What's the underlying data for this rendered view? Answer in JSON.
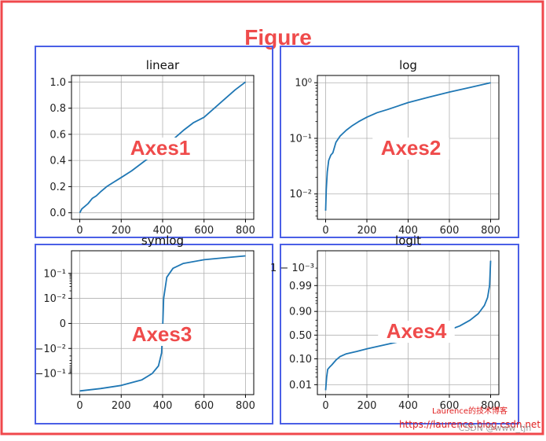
{
  "figure_label": "Figure",
  "watermark": {
    "line1": "Laurence的技术博客",
    "line2": "https://laurence.blog.csdn.net",
    "line3": "CSDN @www_tjn"
  },
  "colors": {
    "outer_frame": "#f0484c",
    "axes_frame": "#4a5fe6",
    "annotation": "#ef4b4b",
    "series": "#1f77b4",
    "grid": "#b0b0b0"
  },
  "chart_data": [
    {
      "type": "line",
      "title": "linear",
      "annotation": "Axes1",
      "xscale": "linear",
      "yscale": "linear",
      "xlim": [
        -40,
        840
      ],
      "ylim": [
        -0.05,
        1.05
      ],
      "xticks": [
        0,
        200,
        400,
        600,
        800
      ],
      "yticks": [
        0.0,
        0.2,
        0.4,
        0.6,
        0.8,
        1.0
      ],
      "yticklabels": [
        "0.0",
        "0.2",
        "0.4",
        "0.6",
        "0.8",
        "1.0"
      ],
      "grid": true,
      "x": [
        0,
        10,
        25,
        40,
        60,
        80,
        100,
        130,
        160,
        200,
        250,
        300,
        350,
        400,
        450,
        500,
        550,
        600,
        650,
        700,
        750,
        800
      ],
      "y": [
        0.0,
        0.03,
        0.05,
        0.07,
        0.11,
        0.13,
        0.16,
        0.2,
        0.23,
        0.27,
        0.32,
        0.38,
        0.44,
        0.5,
        0.56,
        0.63,
        0.69,
        0.73,
        0.8,
        0.87,
        0.94,
        1.0
      ]
    },
    {
      "type": "line",
      "title": "log",
      "annotation": "Axes2",
      "xscale": "linear",
      "yscale": "log",
      "xlim": [
        -40,
        840
      ],
      "ylim": [
        0.0035,
        1.35
      ],
      "xticks": [
        0,
        200,
        400,
        600,
        800
      ],
      "yticks": [
        0.01,
        0.1,
        1
      ],
      "yticklabels": [
        "10⁻²",
        "10⁻¹",
        "10⁰"
      ],
      "grid": true,
      "x": [
        0,
        3,
        8,
        15,
        25,
        35,
        50,
        70,
        100,
        130,
        160,
        200,
        250,
        300,
        400,
        500,
        600,
        700,
        800
      ],
      "y": [
        0.005,
        0.012,
        0.025,
        0.04,
        0.05,
        0.055,
        0.085,
        0.11,
        0.14,
        0.17,
        0.2,
        0.24,
        0.29,
        0.33,
        0.44,
        0.55,
        0.68,
        0.82,
        1.0
      ]
    },
    {
      "type": "line",
      "title": "symlog",
      "annotation": "Axes3",
      "xscale": "linear",
      "yscale": "symlog",
      "linthresh": 0.01,
      "xlim": [
        -40,
        840
      ],
      "ylim": [
        -0.7,
        0.8
      ],
      "xticks": [
        0,
        200,
        400,
        600,
        800
      ],
      "yticks": [
        -0.1,
        -0.01,
        0,
        0.01,
        0.1
      ],
      "yticklabels": [
        "−10⁻¹",
        "−10⁻²",
        "0",
        "10⁻²",
        "10⁻¹"
      ],
      "grid": true,
      "x": [
        0,
        100,
        200,
        300,
        350,
        380,
        395,
        400,
        405,
        420,
        450,
        500,
        600,
        700,
        800
      ],
      "y": [
        -0.5,
        -0.4,
        -0.3,
        -0.18,
        -0.1,
        -0.05,
        -0.015,
        -0.002,
        0.01,
        0.07,
        0.16,
        0.25,
        0.35,
        0.42,
        0.5
      ]
    },
    {
      "type": "line",
      "title": "logit",
      "annotation": "Axes4",
      "xscale": "linear",
      "yscale": "logit",
      "xlim": [
        -40,
        840
      ],
      "ylim": [
        0.004,
        0.9996
      ],
      "xticks": [
        0,
        200,
        400,
        600,
        800
      ],
      "yticks": [
        0.01,
        0.1,
        0.5,
        0.9,
        0.99
      ],
      "yticklabels": [
        "0.01",
        "0.10",
        "0.50",
        "0.90",
        "0.99"
      ],
      "extra_ytick_label": "1 − 10⁻³",
      "grid": true,
      "x": [
        0,
        5,
        10,
        20,
        30,
        50,
        70,
        100,
        150,
        200,
        300,
        400,
        500,
        600,
        650,
        700,
        740,
        770,
        785,
        795,
        800
      ],
      "y": [
        0.006,
        0.02,
        0.04,
        0.05,
        0.06,
        0.09,
        0.12,
        0.15,
        0.18,
        0.22,
        0.3,
        0.4,
        0.52,
        0.62,
        0.7,
        0.8,
        0.88,
        0.94,
        0.97,
        0.99,
        0.999
      ]
    }
  ]
}
